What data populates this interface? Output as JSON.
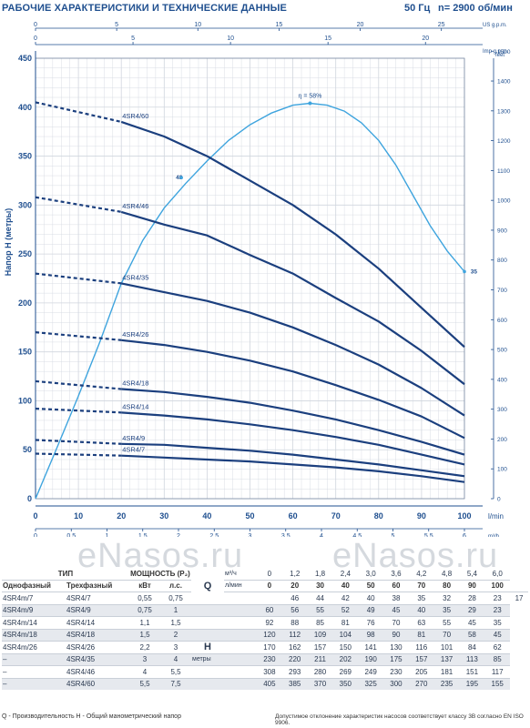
{
  "header": {
    "title": "РАБОЧИЕ ХАРАКТЕРИСТИКИ И ТЕХНИЧЕСКИЕ ДАННЫЕ",
    "frequency": "50 Гц",
    "speed": "n= 2900 об/мин"
  },
  "chart_data": {
    "type": "line",
    "xlabel": "Производительность Q",
    "ylabel": "Напор H (метры)",
    "x_unit": "l/min",
    "x2_unit": "m³/h",
    "top1_unit": "US g.p.m.",
    "top2_unit": "Imp g.p.m.",
    "right_unit": "feet",
    "xlim": [
      0,
      100
    ],
    "ylim": [
      0,
      450
    ],
    "x_ticks": [
      0,
      10,
      20,
      30,
      40,
      50,
      60,
      70,
      80,
      90,
      100
    ],
    "y_ticks": [
      0,
      50,
      100,
      150,
      200,
      250,
      300,
      350,
      400,
      450
    ],
    "x2_ticks": [
      0,
      0.5,
      1,
      1.5,
      2,
      2.5,
      3,
      3.5,
      4,
      4.5,
      5,
      5.5,
      6
    ],
    "us_gpm_ticks": [
      0,
      5,
      10,
      15,
      20,
      25
    ],
    "imp_gpm_ticks": [
      0,
      5,
      10,
      15,
      20
    ],
    "feet_ticks": [
      0,
      100,
      200,
      300,
      400,
      500,
      600,
      700,
      800,
      900,
      1000,
      1100,
      1200,
      1300,
      1400,
      1500
    ],
    "series": [
      {
        "name": "4SR4/7",
        "x": [
          0,
          20,
          30,
          40,
          50,
          60,
          70,
          80,
          90,
          100
        ],
        "y": [
          46,
          44,
          42,
          40,
          38,
          35,
          32,
          28,
          23,
          17
        ]
      },
      {
        "name": "4SR4/9",
        "x": [
          0,
          20,
          30,
          40,
          50,
          60,
          70,
          80,
          90,
          100
        ],
        "y": [
          60,
          56,
          55,
          52,
          49,
          45,
          40,
          35,
          29,
          23
        ]
      },
      {
        "name": "4SR4/14",
        "x": [
          0,
          20,
          30,
          40,
          50,
          60,
          70,
          80,
          90,
          100
        ],
        "y": [
          92,
          88,
          85,
          81,
          76,
          70,
          63,
          55,
          45,
          35
        ]
      },
      {
        "name": "4SR4/18",
        "x": [
          0,
          20,
          30,
          40,
          50,
          60,
          70,
          80,
          90,
          100
        ],
        "y": [
          120,
          112,
          109,
          104,
          98,
          90,
          81,
          70,
          58,
          45
        ]
      },
      {
        "name": "4SR4/26",
        "x": [
          0,
          20,
          30,
          40,
          50,
          60,
          70,
          80,
          90,
          100
        ],
        "y": [
          170,
          162,
          157,
          150,
          141,
          130,
          116,
          101,
          84,
          62
        ]
      },
      {
        "name": "4SR4/35",
        "x": [
          0,
          20,
          30,
          40,
          50,
          60,
          70,
          80,
          90,
          100
        ],
        "y": [
          230,
          220,
          211,
          202,
          190,
          175,
          157,
          137,
          113,
          85
        ]
      },
      {
        "name": "4SR4/46",
        "x": [
          0,
          20,
          30,
          40,
          50,
          60,
          70,
          80,
          90,
          100
        ],
        "y": [
          308,
          293,
          280,
          269,
          249,
          230,
          205,
          181,
          151,
          117
        ]
      },
      {
        "name": "4SR4/60",
        "x": [
          0,
          20,
          30,
          40,
          50,
          60,
          70,
          80,
          90,
          100
        ],
        "y": [
          405,
          385,
          370,
          350,
          325,
          300,
          270,
          235,
          195,
          155
        ]
      }
    ],
    "efficiency": {
      "name": "η = 58%",
      "x": [
        0,
        5,
        10,
        15,
        20,
        25,
        30,
        35,
        40,
        45,
        50,
        55,
        60,
        64,
        68,
        72,
        76,
        80,
        84,
        88,
        92,
        96,
        100
      ],
      "y": [
        0,
        52,
        105,
        160,
        220,
        264,
        297,
        322,
        345,
        366,
        382,
        394,
        402,
        404,
        402,
        396,
        384,
        366,
        341,
        310,
        279,
        253,
        232
      ],
      "labels": [
        {
          "text": "48",
          "x": 34,
          "y": 328
        },
        {
          "text": "35",
          "x": 101,
          "y": 232
        }
      ]
    }
  },
  "table": {
    "col_type": "ТИП",
    "col_power": "МОЩНОСТЬ (P₂)",
    "col_single": "Однофазный",
    "col_three": "Трехфазный",
    "col_kw": "кВт",
    "col_hp": "л.с.",
    "q_label": "Q",
    "h_label": "H",
    "h_unit": "метры",
    "unit_m3h": "м³/ч",
    "unit_lmin": "л/мин",
    "q_m3h": [
      "0",
      "1,2",
      "1,8",
      "2,4",
      "3,0",
      "3,6",
      "4,2",
      "4,8",
      "5,4",
      "6,0"
    ],
    "q_lmin": [
      "0",
      "20",
      "30",
      "40",
      "50",
      "60",
      "70",
      "80",
      "90",
      "100"
    ],
    "rows": [
      {
        "single": "4SR4m/7",
        "three": "4SR4/7",
        "kw": "0,55",
        "hp": "0,75",
        "h": [
          "46",
          "44",
          "42",
          "40",
          "38",
          "35",
          "32",
          "28",
          "23",
          "17"
        ]
      },
      {
        "single": "4SR4m/9",
        "three": "4SR4/9",
        "kw": "0,75",
        "hp": "1",
        "h": [
          "60",
          "56",
          "55",
          "52",
          "49",
          "45",
          "40",
          "35",
          "29",
          "23"
        ]
      },
      {
        "single": "4SR4m/14",
        "three": "4SR4/14",
        "kw": "1,1",
        "hp": "1,5",
        "h": [
          "92",
          "88",
          "85",
          "81",
          "76",
          "70",
          "63",
          "55",
          "45",
          "35"
        ]
      },
      {
        "single": "4SR4m/18",
        "three": "4SR4/18",
        "kw": "1,5",
        "hp": "2",
        "h": [
          "120",
          "112",
          "109",
          "104",
          "98",
          "90",
          "81",
          "70",
          "58",
          "45"
        ]
      },
      {
        "single": "4SR4m/26",
        "three": "4SR4/26",
        "kw": "2,2",
        "hp": "3",
        "h": [
          "170",
          "162",
          "157",
          "150",
          "141",
          "130",
          "116",
          "101",
          "84",
          "62"
        ]
      },
      {
        "single": "–",
        "three": "4SR4/35",
        "kw": "3",
        "hp": "4",
        "h": [
          "230",
          "220",
          "211",
          "202",
          "190",
          "175",
          "157",
          "137",
          "113",
          "85"
        ]
      },
      {
        "single": "–",
        "three": "4SR4/46",
        "kw": "4",
        "hp": "5,5",
        "h": [
          "308",
          "293",
          "280",
          "269",
          "249",
          "230",
          "205",
          "181",
          "151",
          "117"
        ]
      },
      {
        "single": "–",
        "three": "4SR4/60",
        "kw": "5,5",
        "hp": "7,5",
        "h": [
          "405",
          "385",
          "370",
          "350",
          "325",
          "300",
          "270",
          "235",
          "195",
          "155"
        ]
      }
    ]
  },
  "footer": {
    "left": "Q - Производительность  H - Общий манометрический напор",
    "right": "Допустимое отклонение характеристик насосов соответствует классу 3B согласно EN ISO 9906."
  },
  "watermark": "eNasos.ru",
  "colors": {
    "curve": "#1b3f7e",
    "efficiency": "#3ea4de",
    "grid": "#d0d6de",
    "axis": "#1f4f8f"
  }
}
